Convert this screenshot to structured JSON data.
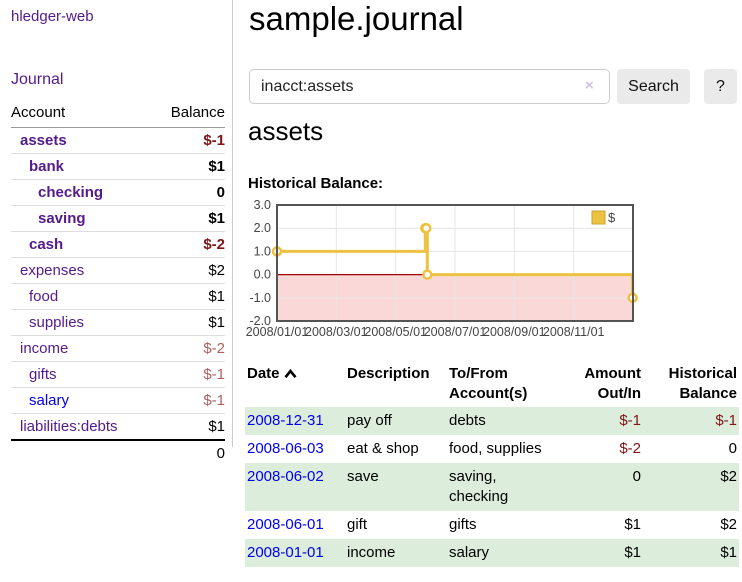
{
  "colors": {
    "link_visited_purple": "#551a8b",
    "link_blue": "#0000ee",
    "negative_strong": "#801515",
    "negative_muted": "#b25f5f",
    "row_stripe_green": "#dceddc",
    "series_gold": "#edc240",
    "negative_region_pink": "#fbd8d8",
    "zero_line_red": "#9f0000",
    "grid_gray": "#e6e6e6",
    "chart_border_gray": "#545454"
  },
  "sidebar": {
    "brand": "hledger-web",
    "nav_journal": "Journal",
    "table": {
      "account_header": "Account",
      "balance_header": "Balance",
      "rows": [
        {
          "account": "assets",
          "depth": 1,
          "bold": true,
          "balance": "$-1",
          "tone": "neg-strong",
          "link_color": "purple"
        },
        {
          "account": "bank",
          "depth": 2,
          "bold": true,
          "balance": "$1",
          "tone": "normal",
          "link_color": "purple"
        },
        {
          "account": "checking",
          "depth": 3,
          "bold": true,
          "balance": "0",
          "tone": "normal",
          "link_color": "purple"
        },
        {
          "account": "saving",
          "depth": 3,
          "bold": true,
          "balance": "$1",
          "tone": "normal",
          "link_color": "purple"
        },
        {
          "account": "cash",
          "depth": 2,
          "bold": true,
          "balance": "$-2",
          "tone": "neg-strong",
          "link_color": "purple"
        },
        {
          "account": "expenses",
          "depth": 1,
          "bold": false,
          "balance": "$2",
          "tone": "normal",
          "link_color": "purple"
        },
        {
          "account": "food",
          "depth": 2,
          "bold": false,
          "balance": "$1",
          "tone": "normal",
          "link_color": "purple"
        },
        {
          "account": "supplies",
          "depth": 2,
          "bold": false,
          "balance": "$1",
          "tone": "normal",
          "link_color": "purple"
        },
        {
          "account": "income",
          "depth": 1,
          "bold": false,
          "balance": "$-2",
          "tone": "neg-muted",
          "link_color": "purple"
        },
        {
          "account": "gifts",
          "depth": 2,
          "bold": false,
          "balance": "$-1",
          "tone": "neg-muted",
          "link_color": "purple"
        },
        {
          "account": "salary",
          "depth": 2,
          "bold": false,
          "balance": "$-1",
          "tone": "neg-muted",
          "link_color": "blue"
        },
        {
          "account": "liabilities:debts",
          "depth": 1,
          "bold": false,
          "balance": "$1",
          "tone": "normal",
          "link_color": "purple"
        }
      ],
      "total": "0"
    }
  },
  "main": {
    "title": "sample.journal",
    "search": {
      "value": "inacct:assets",
      "clear_icon": "×",
      "search_button": "Search",
      "help_button": "?"
    },
    "account_heading": "assets",
    "chart_label": "Historical Balance:"
  },
  "chart_data": {
    "type": "line",
    "title": "Historical Balance:",
    "step": true,
    "series": [
      {
        "name": "$",
        "color": "#edc240",
        "points": [
          [
            "2008-01-01",
            1.0
          ],
          [
            "2008-06-01",
            2.0
          ],
          [
            "2008-06-02",
            2.0
          ],
          [
            "2008-06-03",
            0.0
          ],
          [
            "2008-12-31",
            -1.0
          ]
        ]
      }
    ],
    "x_range": [
      "2008-01-01",
      "2009-01-01"
    ],
    "ylim": [
      -2.0,
      3.0
    ],
    "y_ticks": [
      -2.0,
      -1.0,
      0.0,
      1.0,
      2.0,
      3.0
    ],
    "y_tick_labels": [
      "-2.0",
      "-1.0",
      "0.0",
      "1.0",
      "2.0",
      "3.0"
    ],
    "x_tick_months": [
      0,
      2,
      4,
      6,
      8,
      10
    ],
    "x_tick_labels": [
      "2008/01/01",
      "2008/03/01",
      "2008/05/01",
      "2008/07/01",
      "2008/09/01",
      "2008/11/01"
    ],
    "legend": {
      "label": "$",
      "position": "top-right"
    },
    "grid": true,
    "negative_region_color": "#fbd8d8",
    "zero_line_color": "#9f0000",
    "grid_color": "#e6e6e6",
    "border_color": "#545454",
    "tick_label_color": "#444444"
  },
  "register": {
    "headers": {
      "date": "Date",
      "description": "Description",
      "tofrom": "To/From Account(s)",
      "amount": "Amount Out/In",
      "balance": "Historical Balance"
    },
    "rows": [
      {
        "date": "2008-12-31",
        "description": "pay off",
        "accounts": "debts",
        "amount": "$-1",
        "amount_neg": true,
        "balance": "$-1",
        "balance_neg": true,
        "stripe": true
      },
      {
        "date": "2008-06-03",
        "description": "eat & shop",
        "accounts": "food, supplies",
        "amount": "$-2",
        "amount_neg": true,
        "balance": "0",
        "balance_neg": false,
        "stripe": false
      },
      {
        "date": "2008-06-02",
        "description": "save",
        "accounts": "saving, checking",
        "amount": "0",
        "amount_neg": false,
        "balance": "$2",
        "balance_neg": false,
        "stripe": true
      },
      {
        "date": "2008-06-01",
        "description": "gift",
        "accounts": "gifts",
        "amount": "$1",
        "amount_neg": false,
        "balance": "$2",
        "balance_neg": false,
        "stripe": false
      },
      {
        "date": "2008-01-01",
        "description": "income",
        "accounts": "salary",
        "amount": "$1",
        "amount_neg": false,
        "balance": "$1",
        "balance_neg": false,
        "stripe": true
      }
    ]
  }
}
